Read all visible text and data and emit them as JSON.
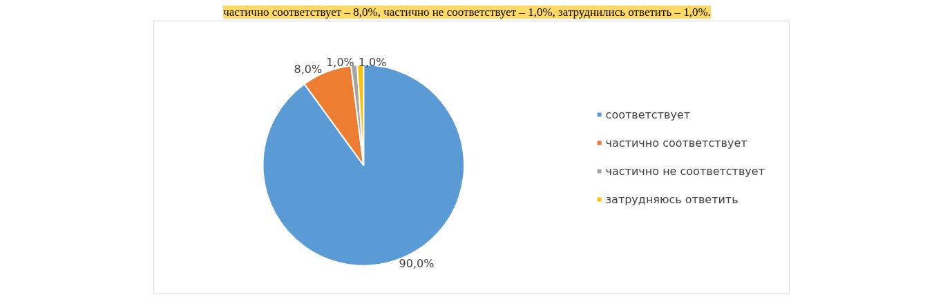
{
  "chart_data": {
    "type": "pie",
    "categories": [
      "соответствует",
      "частично соответствует",
      "частично не соответствует",
      "затрудняюсь ответить"
    ],
    "values": [
      90,
      8,
      1,
      1
    ],
    "value_labels": [
      "90,0%",
      "8,0%",
      "1,0%",
      "1,0%"
    ],
    "colors": [
      "#5b9bd5",
      "#ed7d31",
      "#a5a5a5",
      "#ffc000"
    ],
    "legend": "right",
    "annotations": [
      "частично соответствует – 8,0%, частично не соответствует – 1,0%, затруднились ответить – 1,0%."
    ]
  }
}
